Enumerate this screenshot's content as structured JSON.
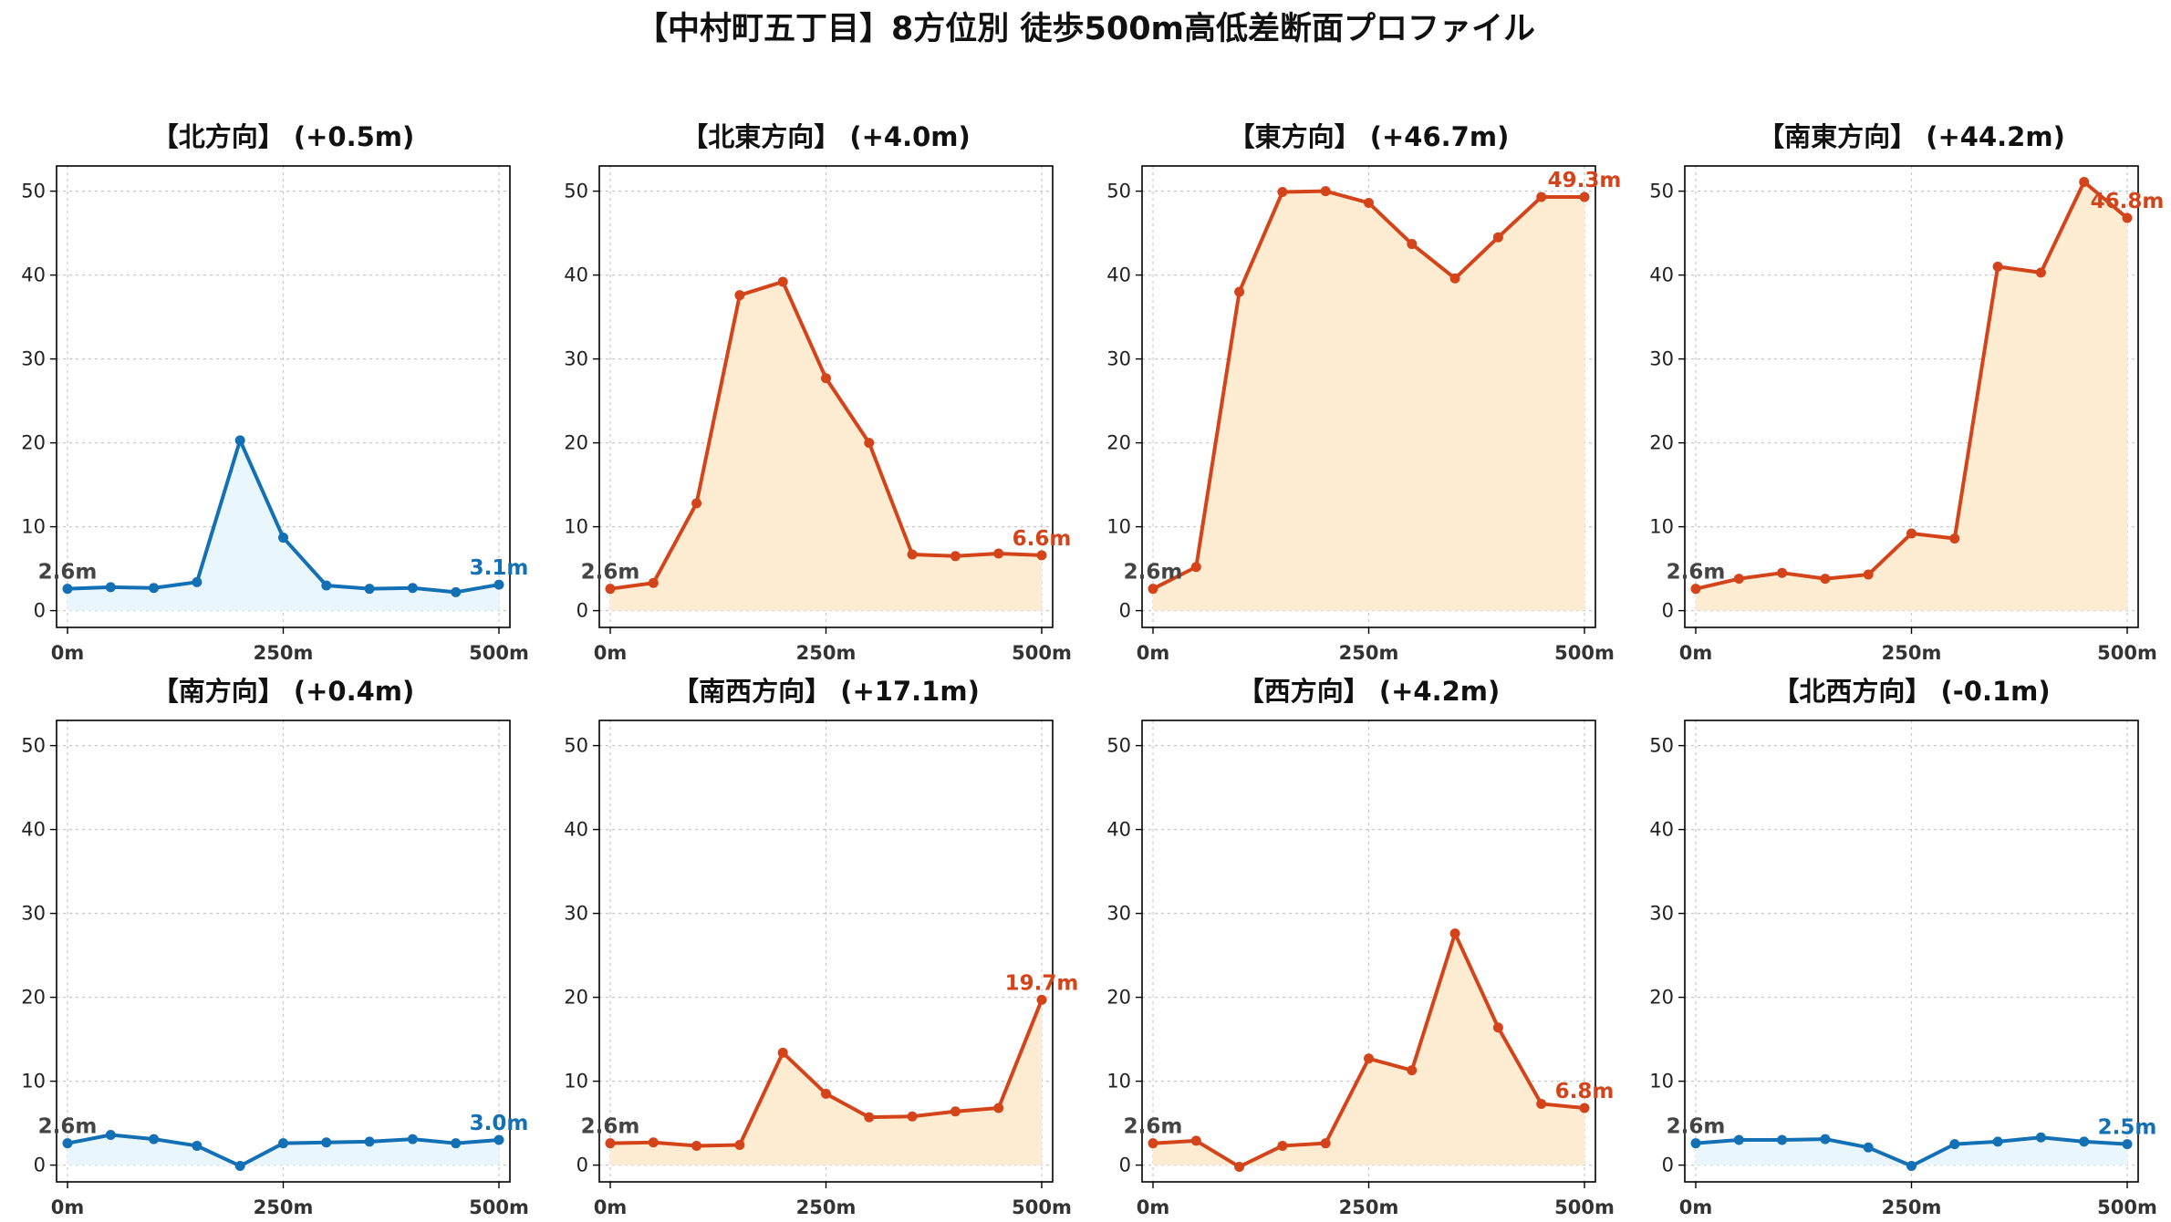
{
  "title": "【中村町五丁目】8方位別 徒歩500m高低差断面プロファイル",
  "colors": {
    "up_line": "#d4441a",
    "up_fill": "#fdebd2",
    "flat_line": "#1470b4",
    "flat_fill": "#e9f6fc",
    "start_label": "#444444"
  },
  "chart_data": [
    {
      "type": "area",
      "title": "【北方向】 (+0.5m)",
      "style": "flat",
      "xlim": [
        0,
        500
      ],
      "ylim": [
        -2,
        53
      ],
      "xticks": [
        0,
        250,
        500
      ],
      "xtick_labels": [
        "0m",
        "250m",
        "500m"
      ],
      "yticks": [
        0,
        10,
        20,
        30,
        40,
        50
      ],
      "yticks_labels": [
        "0",
        "10",
        "20",
        "30",
        "40",
        "50"
      ],
      "x": [
        0,
        50,
        100,
        150,
        200,
        250,
        300,
        350,
        400,
        450,
        500
      ],
      "y": [
        2.6,
        2.8,
        2.7,
        3.4,
        20.3,
        8.7,
        3.0,
        2.6,
        2.7,
        2.2,
        3.1
      ],
      "start_label": "2.6m",
      "end_label": "3.1m",
      "grid": true
    },
    {
      "type": "area",
      "title": "【北東方向】 (+4.0m)",
      "style": "up",
      "xlim": [
        0,
        500
      ],
      "ylim": [
        -2,
        53
      ],
      "xticks": [
        0,
        250,
        500
      ],
      "xtick_labels": [
        "0m",
        "250m",
        "500m"
      ],
      "yticks": [
        0,
        10,
        20,
        30,
        40,
        50
      ],
      "yticks_labels": [
        "0",
        "10",
        "20",
        "30",
        "40",
        "50"
      ],
      "x": [
        0,
        50,
        100,
        150,
        200,
        250,
        300,
        350,
        400,
        450,
        500
      ],
      "y": [
        2.6,
        3.3,
        12.8,
        37.6,
        39.2,
        27.7,
        20.0,
        6.7,
        6.5,
        6.8,
        6.6
      ],
      "start_label": "2.6m",
      "end_label": "6.6m",
      "grid": true
    },
    {
      "type": "area",
      "title": "【東方向】 (+46.7m)",
      "style": "up",
      "xlim": [
        0,
        500
      ],
      "ylim": [
        -2,
        53
      ],
      "xticks": [
        0,
        250,
        500
      ],
      "xtick_labels": [
        "0m",
        "250m",
        "500m"
      ],
      "yticks": [
        0,
        10,
        20,
        30,
        40,
        50
      ],
      "yticks_labels": [
        "0",
        "10",
        "20",
        "30",
        "40",
        "50"
      ],
      "x": [
        0,
        50,
        100,
        150,
        200,
        250,
        300,
        350,
        400,
        450,
        500
      ],
      "y": [
        2.6,
        5.2,
        38.0,
        49.9,
        50.0,
        48.6,
        43.7,
        39.6,
        44.5,
        49.3,
        49.3
      ],
      "start_label": "2.6m",
      "end_label": "49.3m",
      "grid": true
    },
    {
      "type": "area",
      "title": "【南東方向】 (+44.2m)",
      "style": "up",
      "xlim": [
        0,
        500
      ],
      "ylim": [
        -2,
        53
      ],
      "xticks": [
        0,
        250,
        500
      ],
      "xtick_labels": [
        "0m",
        "250m",
        "500m"
      ],
      "yticks": [
        0,
        10,
        20,
        30,
        40,
        50
      ],
      "yticks_labels": [
        "0",
        "10",
        "20",
        "30",
        "40",
        "50"
      ],
      "x": [
        0,
        50,
        100,
        150,
        200,
        250,
        300,
        350,
        400,
        450,
        500
      ],
      "y": [
        2.6,
        3.8,
        4.5,
        3.8,
        4.3,
        9.2,
        8.6,
        41.0,
        40.3,
        51.1,
        46.8
      ],
      "start_label": "2.6m",
      "end_label": "46.8m",
      "grid": true
    },
    {
      "type": "area",
      "title": "【南方向】 (+0.4m)",
      "style": "flat",
      "xlim": [
        0,
        500
      ],
      "ylim": [
        -2,
        53
      ],
      "xticks": [
        0,
        250,
        500
      ],
      "xtick_labels": [
        "0m",
        "250m",
        "500m"
      ],
      "yticks": [
        0,
        10,
        20,
        30,
        40,
        50
      ],
      "yticks_labels": [
        "0",
        "10",
        "20",
        "30",
        "40",
        "50"
      ],
      "x": [
        0,
        50,
        100,
        150,
        200,
        250,
        300,
        350,
        400,
        450,
        500
      ],
      "y": [
        2.6,
        3.6,
        3.1,
        2.3,
        -0.1,
        2.6,
        2.7,
        2.8,
        3.1,
        2.6,
        3.0
      ],
      "start_label": "2.6m",
      "end_label": "3.0m",
      "grid": true
    },
    {
      "type": "area",
      "title": "【南西方向】 (+17.1m)",
      "style": "up",
      "xlim": [
        0,
        500
      ],
      "ylim": [
        -2,
        53
      ],
      "xticks": [
        0,
        250,
        500
      ],
      "xtick_labels": [
        "0m",
        "250m",
        "500m"
      ],
      "yticks": [
        0,
        10,
        20,
        30,
        40,
        50
      ],
      "yticks_labels": [
        "0",
        "10",
        "20",
        "30",
        "40",
        "50"
      ],
      "x": [
        0,
        50,
        100,
        150,
        200,
        250,
        300,
        350,
        400,
        450,
        500
      ],
      "y": [
        2.6,
        2.7,
        2.3,
        2.4,
        13.4,
        8.5,
        5.7,
        5.8,
        6.4,
        6.8,
        19.7
      ],
      "start_label": "2.6m",
      "end_label": "19.7m",
      "grid": true
    },
    {
      "type": "area",
      "title": "【西方向】 (+4.2m)",
      "style": "up",
      "xlim": [
        0,
        500
      ],
      "ylim": [
        -2,
        53
      ],
      "xticks": [
        0,
        250,
        500
      ],
      "xtick_labels": [
        "0m",
        "250m",
        "500m"
      ],
      "yticks": [
        0,
        10,
        20,
        30,
        40,
        50
      ],
      "yticks_labels": [
        "0",
        "10",
        "20",
        "30",
        "40",
        "50"
      ],
      "x": [
        0,
        50,
        100,
        150,
        200,
        250,
        300,
        350,
        400,
        450,
        500
      ],
      "y": [
        2.6,
        2.9,
        -0.2,
        2.3,
        2.6,
        12.7,
        11.3,
        27.6,
        16.4,
        7.3,
        6.8
      ],
      "start_label": "2.6m",
      "end_label": "6.8m",
      "grid": true
    },
    {
      "type": "area",
      "title": "【北西方向】 (-0.1m)",
      "style": "flat",
      "xlim": [
        0,
        500
      ],
      "ylim": [
        -2,
        53
      ],
      "xticks": [
        0,
        250,
        500
      ],
      "xtick_labels": [
        "0m",
        "250m",
        "500m"
      ],
      "yticks": [
        0,
        10,
        20,
        30,
        40,
        50
      ],
      "yticks_labels": [
        "0",
        "10",
        "20",
        "30",
        "40",
        "50"
      ],
      "x": [
        0,
        50,
        100,
        150,
        200,
        250,
        300,
        350,
        400,
        450,
        500
      ],
      "y": [
        2.6,
        3.0,
        3.0,
        3.1,
        2.1,
        -0.1,
        2.5,
        2.8,
        3.3,
        2.8,
        2.5
      ],
      "start_label": "2.6m",
      "end_label": "2.5m",
      "grid": true
    }
  ]
}
